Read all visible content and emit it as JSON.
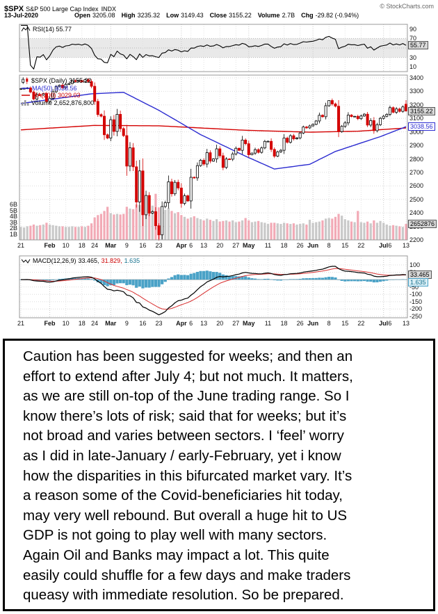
{
  "header": {
    "symbol": "$SPX",
    "name": "S&P 500 Large Cap Index",
    "exchange": "INDX",
    "credit": "© StockCharts.com",
    "date": "13-Jul-2020",
    "quote": [
      {
        "label": "Open",
        "value": "3205.08"
      },
      {
        "label": "High",
        "value": "3235.32"
      },
      {
        "label": "Low",
        "value": "3149.43"
      },
      {
        "label": "Close",
        "value": "3155.22"
      },
      {
        "label": "Volume",
        "value": "2.7B"
      },
      {
        "label": "Chg",
        "value": "-29.82 (-0.94%)"
      }
    ]
  },
  "rsi_panel": {
    "legend": "RSI(14) 55.77",
    "current": "55.77",
    "ticks": [
      90,
      70,
      30,
      10
    ]
  },
  "main_panel": {
    "legend_price": "$SPX (Daily) 3155.22",
    "legend_ma50": "MA(50) 3038.56",
    "legend_ma200": "MA(200) 3029.03",
    "legend_volume": "Volume 2,652,876,800",
    "price_label": "3155.22",
    "ma50_label": "3038.56",
    "volume_label": "2652876",
    "price_axis": {
      "min": 2200,
      "max": 3400,
      "step": 100
    },
    "volume_ticks": [
      {
        "label": "6B",
        "value": 6
      },
      {
        "label": "5B",
        "value": 5
      },
      {
        "label": "4B",
        "value": 4
      },
      {
        "label": "3B",
        "value": 3
      },
      {
        "label": "2B",
        "value": 2
      },
      {
        "label": "1B",
        "value": 1
      }
    ]
  },
  "macd_panel": {
    "legend_prefix": "MACD(12,26,9)",
    "legend_values": {
      "macd": "33.465,",
      "signal": "31.829,",
      "hist": "1.635"
    },
    "macd_label": "33.465",
    "hist_label": "1.635",
    "ticks": [
      100,
      50,
      0,
      -50,
      -100,
      -150,
      -200,
      -250
    ]
  },
  "chart_data": {
    "type": "candlestick",
    "title": "$SPX (Daily)",
    "ylim": [
      2200,
      3400
    ],
    "dates": [
      "2020-01-21",
      "2020-01-22",
      "2020-01-23",
      "2020-01-24",
      "2020-01-27",
      "2020-01-28",
      "2020-01-29",
      "2020-01-30",
      "2020-01-31",
      "2020-02-03",
      "2020-02-04",
      "2020-02-05",
      "2020-02-06",
      "2020-02-07",
      "2020-02-10",
      "2020-02-11",
      "2020-02-12",
      "2020-02-13",
      "2020-02-14",
      "2020-02-18",
      "2020-02-19",
      "2020-02-20",
      "2020-02-21",
      "2020-02-24",
      "2020-02-25",
      "2020-02-26",
      "2020-02-27",
      "2020-02-28",
      "2020-03-02",
      "2020-03-03",
      "2020-03-04",
      "2020-03-05",
      "2020-03-06",
      "2020-03-09",
      "2020-03-10",
      "2020-03-11",
      "2020-03-12",
      "2020-03-13",
      "2020-03-16",
      "2020-03-17",
      "2020-03-18",
      "2020-03-19",
      "2020-03-20",
      "2020-03-23",
      "2020-03-24",
      "2020-03-25",
      "2020-03-26",
      "2020-03-27",
      "2020-03-30",
      "2020-03-31",
      "2020-04-01",
      "2020-04-02",
      "2020-04-03",
      "2020-04-06",
      "2020-04-07",
      "2020-04-08",
      "2020-04-09",
      "2020-04-13",
      "2020-04-14",
      "2020-04-15",
      "2020-04-16",
      "2020-04-17",
      "2020-04-20",
      "2020-04-21",
      "2020-04-22",
      "2020-04-23",
      "2020-04-24",
      "2020-04-27",
      "2020-04-28",
      "2020-04-29",
      "2020-04-30",
      "2020-05-01",
      "2020-05-04",
      "2020-05-05",
      "2020-05-06",
      "2020-05-07",
      "2020-05-08",
      "2020-05-11",
      "2020-05-12",
      "2020-05-13",
      "2020-05-14",
      "2020-05-15",
      "2020-05-18",
      "2020-05-19",
      "2020-05-20",
      "2020-05-21",
      "2020-05-22",
      "2020-05-26",
      "2020-05-27",
      "2020-05-28",
      "2020-05-29",
      "2020-06-01",
      "2020-06-02",
      "2020-06-03",
      "2020-06-04",
      "2020-06-05",
      "2020-06-08",
      "2020-06-09",
      "2020-06-10",
      "2020-06-11",
      "2020-06-12",
      "2020-06-15",
      "2020-06-16",
      "2020-06-17",
      "2020-06-18",
      "2020-06-19",
      "2020-06-22",
      "2020-06-23",
      "2020-06-24",
      "2020-06-25",
      "2020-06-26",
      "2020-06-29",
      "2020-06-30",
      "2020-07-01",
      "2020-07-02",
      "2020-07-06",
      "2020-07-07",
      "2020-07-08",
      "2020-07-09",
      "2020-07-10",
      "2020-07-13"
    ],
    "close": [
      3320.79,
      3321.75,
      3325.54,
      3295.47,
      3243.63,
      3276.24,
      3273.4,
      3283.66,
      3225.52,
      3248.92,
      3297.59,
      3334.69,
      3345.78,
      3327.71,
      3352.09,
      3357.75,
      3379.45,
      3373.94,
      3380.16,
      3370.29,
      3386.15,
      3373.23,
      3337.75,
      3225.89,
      3128.21,
      3116.39,
      2978.76,
      2954.22,
      3090.23,
      3003.37,
      3130.12,
      3023.94,
      2972.37,
      2746.56,
      2882.23,
      2741.38,
      2480.64,
      2711.02,
      2386.13,
      2529.19,
      2398.1,
      2409.39,
      2304.92,
      2237.4,
      2447.33,
      2475.56,
      2630.07,
      2541.47,
      2626.65,
      2584.59,
      2470.5,
      2526.9,
      2488.65,
      2663.68,
      2659.41,
      2749.98,
      2789.82,
      2761.63,
      2846.06,
      2783.36,
      2799.55,
      2874.56,
      2823.16,
      2736.56,
      2799.31,
      2797.8,
      2836.74,
      2878.48,
      2863.39,
      2939.51,
      2912.43,
      2830.71,
      2842.74,
      2868.44,
      2848.42,
      2881.19,
      2929.8,
      2930.32,
      2870.12,
      2820.0,
      2852.5,
      2863.7,
      2953.91,
      2922.94,
      2971.61,
      2948.51,
      2955.45,
      2991.77,
      3036.13,
      3029.73,
      3044.31,
      3055.73,
      3080.82,
      3122.87,
      3112.35,
      3193.93,
      3232.39,
      3207.18,
      3190.14,
      3002.1,
      3041.31,
      3066.59,
      3124.74,
      3113.49,
      3115.34,
      3097.74,
      3117.86,
      3131.29,
      3050.33,
      3083.76,
      3009.05,
      3053.24,
      3100.29,
      3115.86,
      3130.01,
      3179.72,
      3145.32,
      3169.94,
      3152.05,
      3185.04,
      3155.22
    ],
    "volume_billions": [
      2.2,
      2.1,
      2.3,
      2.4,
      2.6,
      2.4,
      2.5,
      2.6,
      2.9,
      2.6,
      2.5,
      2.4,
      2.3,
      2.3,
      2.2,
      2.2,
      2.3,
      2.2,
      2.2,
      2.3,
      2.2,
      2.4,
      2.8,
      3.8,
      4.2,
      4.4,
      4.9,
      5.6,
      4.5,
      4.3,
      4.4,
      4.3,
      4.4,
      5.6,
      5.3,
      5.2,
      6.0,
      5.9,
      6.4,
      5.9,
      6.1,
      5.8,
      7.8,
      5.5,
      5.2,
      5.1,
      5.4,
      4.9,
      4.5,
      4.7,
      4.2,
      3.9,
      3.6,
      3.8,
      4.0,
      3.7,
      3.5,
      3.3,
      3.6,
      3.4,
      3.2,
      3.5,
      3.1,
      3.2,
      3.3,
      3.1,
      3.3,
      3.0,
      3.1,
      3.3,
      3.7,
      3.3,
      3.0,
      3.1,
      3.2,
      3.0,
      2.9,
      2.7,
      2.9,
      2.9,
      2.8,
      2.7,
      2.9,
      2.8,
      2.7,
      2.8,
      2.6,
      2.7,
      2.8,
      2.6,
      3.4,
      2.9,
      3.0,
      3.1,
      3.3,
      3.6,
      3.7,
      3.6,
      3.9,
      4.4,
      4.1,
      3.5,
      3.3,
      3.1,
      3.0,
      4.9,
      3.0,
      2.9,
      3.1,
      2.8,
      3.3,
      2.9,
      3.2,
      2.9,
      2.6,
      2.4,
      2.5,
      2.4,
      2.3,
      2.2,
      2.7
    ],
    "open_overrides": {
      "2020-07-13": 3205.08
    },
    "high_overrides": {
      "2020-02-19": 3393.52,
      "2020-06-08": 3233.13,
      "2020-07-13": 3235.32
    },
    "low_overrides": {
      "2020-03-23": 2191.86,
      "2020-07-13": 3149.43
    },
    "ma50_keypoints": [
      [
        "2020-01-21",
        3210
      ],
      [
        "2020-02-21",
        3282
      ],
      [
        "2020-03-06",
        3293
      ],
      [
        "2020-03-23",
        3160
      ],
      [
        "2020-04-09",
        2980
      ],
      [
        "2020-04-30",
        2820
      ],
      [
        "2020-05-13",
        2725
      ],
      [
        "2020-05-29",
        2760
      ],
      [
        "2020-06-10",
        2855
      ],
      [
        "2020-06-30",
        2965
      ],
      [
        "2020-07-13",
        3038.56
      ]
    ],
    "ma200_keypoints": [
      [
        "2020-01-21",
        3015
      ],
      [
        "2020-02-24",
        3048
      ],
      [
        "2020-03-23",
        3045
      ],
      [
        "2020-04-30",
        3012
      ],
      [
        "2020-05-29",
        2998
      ],
      [
        "2020-06-19",
        3005
      ],
      [
        "2020-07-13",
        3029.03
      ]
    ],
    "indicators": {
      "rsi": {
        "period": 14,
        "current": 55.77
      },
      "macd": {
        "params": "12,26,9",
        "macd": 33.465,
        "signal": 31.829,
        "histogram": 1.635
      }
    },
    "x_ticks": [
      {
        "label": "21",
        "date": "2020-01-21",
        "bold": false
      },
      {
        "label": "Feb",
        "date": "2020-02-03",
        "bold": true
      },
      {
        "label": "10",
        "date": "2020-02-10",
        "bold": false
      },
      {
        "label": "18",
        "date": "2020-02-18",
        "bold": false
      },
      {
        "label": "24",
        "date": "2020-02-24",
        "bold": false
      },
      {
        "label": "Mar",
        "date": "2020-03-02",
        "bold": true
      },
      {
        "label": "9",
        "date": "2020-03-09",
        "bold": false
      },
      {
        "label": "16",
        "date": "2020-03-16",
        "bold": false
      },
      {
        "label": "23",
        "date": "2020-03-23",
        "bold": false
      },
      {
        "label": "Apr",
        "date": "2020-04-01",
        "bold": true
      },
      {
        "label": "6",
        "date": "2020-04-06",
        "bold": false
      },
      {
        "label": "13",
        "date": "2020-04-13",
        "bold": false
      },
      {
        "label": "20",
        "date": "2020-04-20",
        "bold": false
      },
      {
        "label": "27",
        "date": "2020-04-27",
        "bold": false
      },
      {
        "label": "May",
        "date": "2020-05-01",
        "bold": true
      },
      {
        "label": "11",
        "date": "2020-05-11",
        "bold": false
      },
      {
        "label": "18",
        "date": "2020-05-18",
        "bold": false
      },
      {
        "label": "26",
        "date": "2020-05-26",
        "bold": false
      },
      {
        "label": "Jun",
        "date": "2020-06-01",
        "bold": true
      },
      {
        "label": "8",
        "date": "2020-06-08",
        "bold": false
      },
      {
        "label": "15",
        "date": "2020-06-15",
        "bold": false
      },
      {
        "label": "22",
        "date": "2020-06-22",
        "bold": false
      },
      {
        "label": "Jul",
        "date": "2020-07-01",
        "bold": true
      },
      {
        "label": "6",
        "date": "2020-07-06",
        "bold": false
      },
      {
        "label": "13",
        "date": "2020-07-13",
        "bold": false
      }
    ]
  },
  "commentary": {
    "lines": [
      "Caution has been suggested for weeks; and then an",
      "effort to extend after July 4; but not much. It matters,",
      "as we are still on-top of the June trading range. So I",
      "know there’s lots of risk; said that for weeks; but it’s",
      "not broad and varies between sectors. I ‘feel’ worry",
      "as I did in late-January / early-February, yet i know",
      "how the disparities in this bifurcated market vary. It’s",
      "a reason some of the Covid-beneficiaries hit today,",
      "may very well rebound. But overall a huge hit to US",
      "GDP is not going to play well with many sectors.",
      "Again Oil and Banks may impact a lot. This quite",
      "easily could shuffle for a few days and make traders",
      "queasy with immediate resolution. So be prepared."
    ]
  },
  "colors": {
    "up_candle": "#000000",
    "down_candle": "#d40000",
    "ma50": "#2b2bd0",
    "ma200": "#d40000",
    "volume_up": "#c9c9c9",
    "volume_down": "#f2aab6",
    "macd_line": "#000000",
    "signal_line": "#d93030",
    "histogram": "#4aa2c7",
    "band": "#e9e9e9",
    "grid": "#dcdcdc",
    "panel_border": "#999999"
  }
}
